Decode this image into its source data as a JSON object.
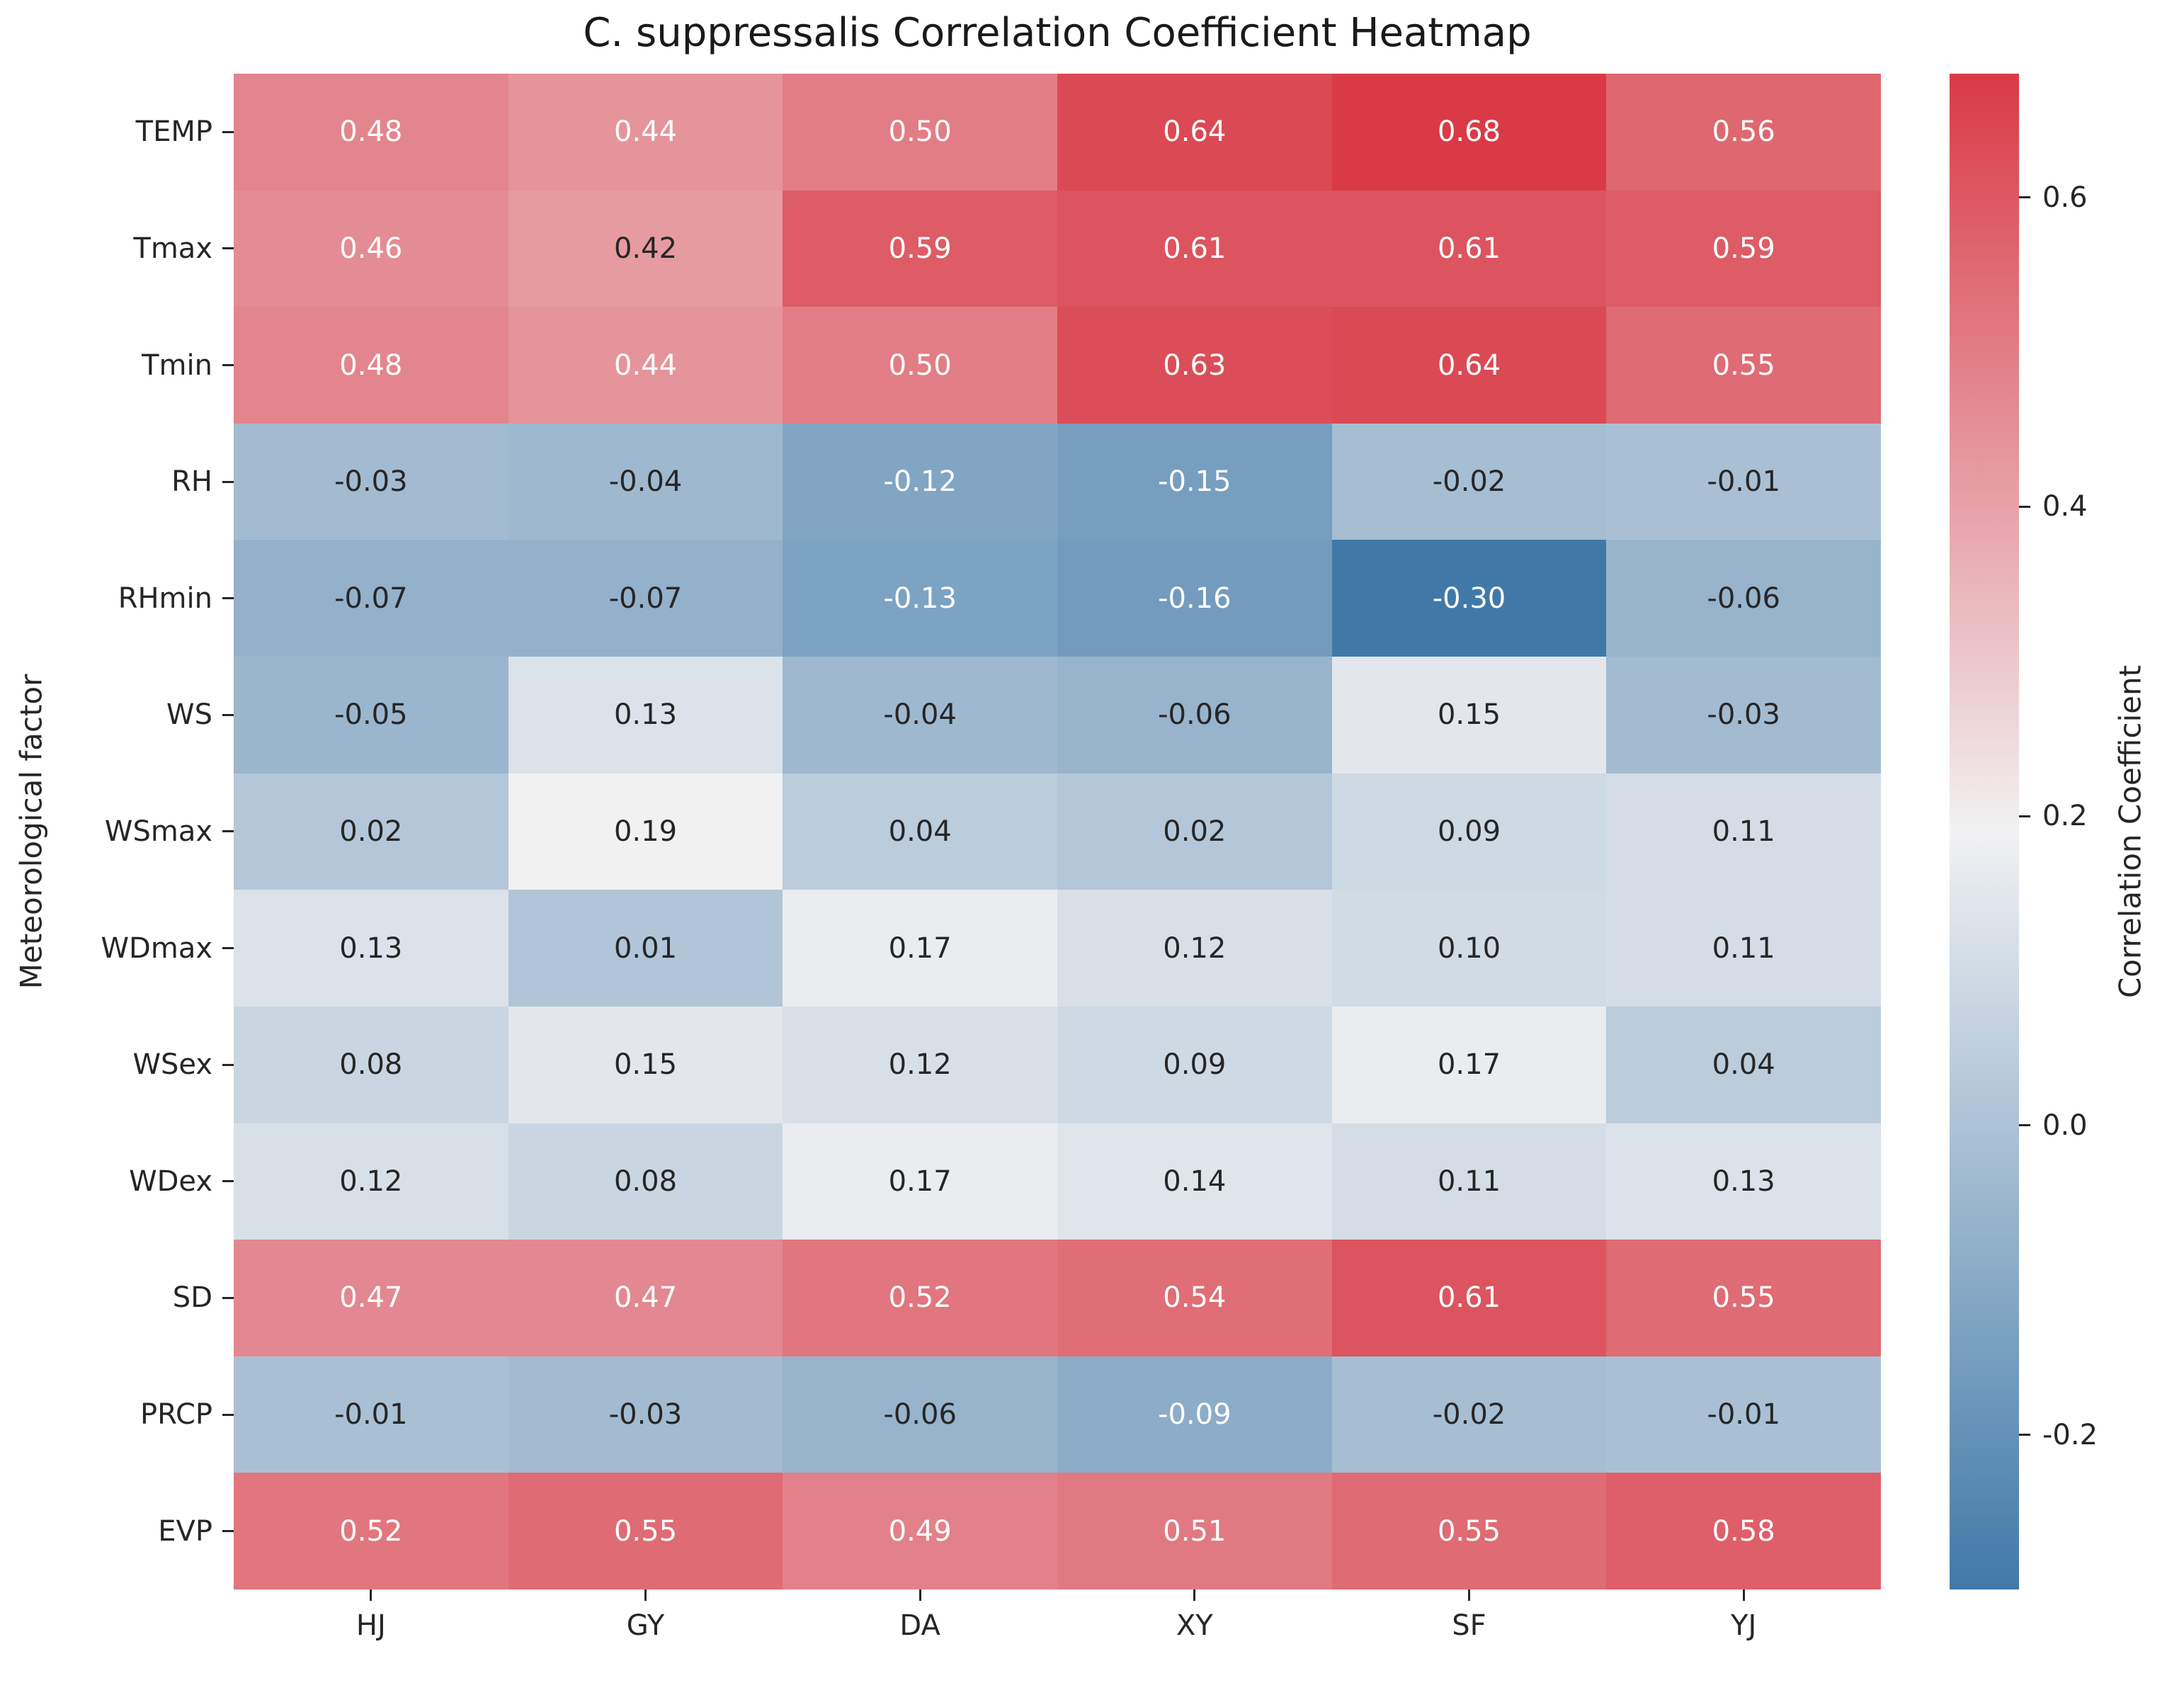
{
  "title": "C. suppressalis Correlation Coefficient Heatmap",
  "chart_data": {
    "type": "heatmap",
    "title": "C. suppressalis Correlation Coefficient Heatmap",
    "xlabel": "",
    "ylabel": "Meteorological factor",
    "x_categories": [
      "HJ",
      "GY",
      "DA",
      "XY",
      "SF",
      "YJ"
    ],
    "y_categories": [
      "TEMP",
      "Tmax",
      "Tmin",
      "RH",
      "RHmin",
      "WS",
      "WSmax",
      "WDmax",
      "WSex",
      "WDex",
      "SD",
      "PRCP",
      "EVP"
    ],
    "values": [
      [
        0.48,
        0.44,
        0.5,
        0.64,
        0.68,
        0.56
      ],
      [
        0.46,
        0.42,
        0.59,
        0.61,
        0.61,
        0.59
      ],
      [
        0.48,
        0.44,
        0.5,
        0.63,
        0.64,
        0.55
      ],
      [
        -0.03,
        -0.04,
        -0.12,
        -0.15,
        -0.02,
        -0.01
      ],
      [
        -0.07,
        -0.07,
        -0.13,
        -0.16,
        -0.3,
        -0.06
      ],
      [
        -0.05,
        0.13,
        -0.04,
        -0.06,
        0.15,
        -0.03
      ],
      [
        0.02,
        0.19,
        0.04,
        0.02,
        0.09,
        0.11
      ],
      [
        0.13,
        0.01,
        0.17,
        0.12,
        0.1,
        0.11
      ],
      [
        0.08,
        0.15,
        0.12,
        0.09,
        0.17,
        0.04
      ],
      [
        0.12,
        0.08,
        0.17,
        0.14,
        0.11,
        0.13
      ],
      [
        0.47,
        0.47,
        0.52,
        0.54,
        0.61,
        0.55
      ],
      [
        -0.01,
        -0.03,
        -0.06,
        -0.09,
        -0.02,
        -0.01
      ],
      [
        0.52,
        0.55,
        0.49,
        0.51,
        0.55,
        0.58
      ]
    ],
    "annotation_decimals": 2,
    "colorbar_label": "Correlation Coefficient",
    "colorbar_ticks": [
      0.6,
      0.4,
      0.2,
      0.0,
      -0.2
    ],
    "vmin": -0.3,
    "vmax": 0.68,
    "color_min": "#4079a8",
    "color_mid": "#f1f1f2",
    "color_max": "#d93a46",
    "annot_color_dark": "#262626",
    "annot_color_light": "#ffffff",
    "grid": false,
    "legend": "colorbar-right"
  }
}
